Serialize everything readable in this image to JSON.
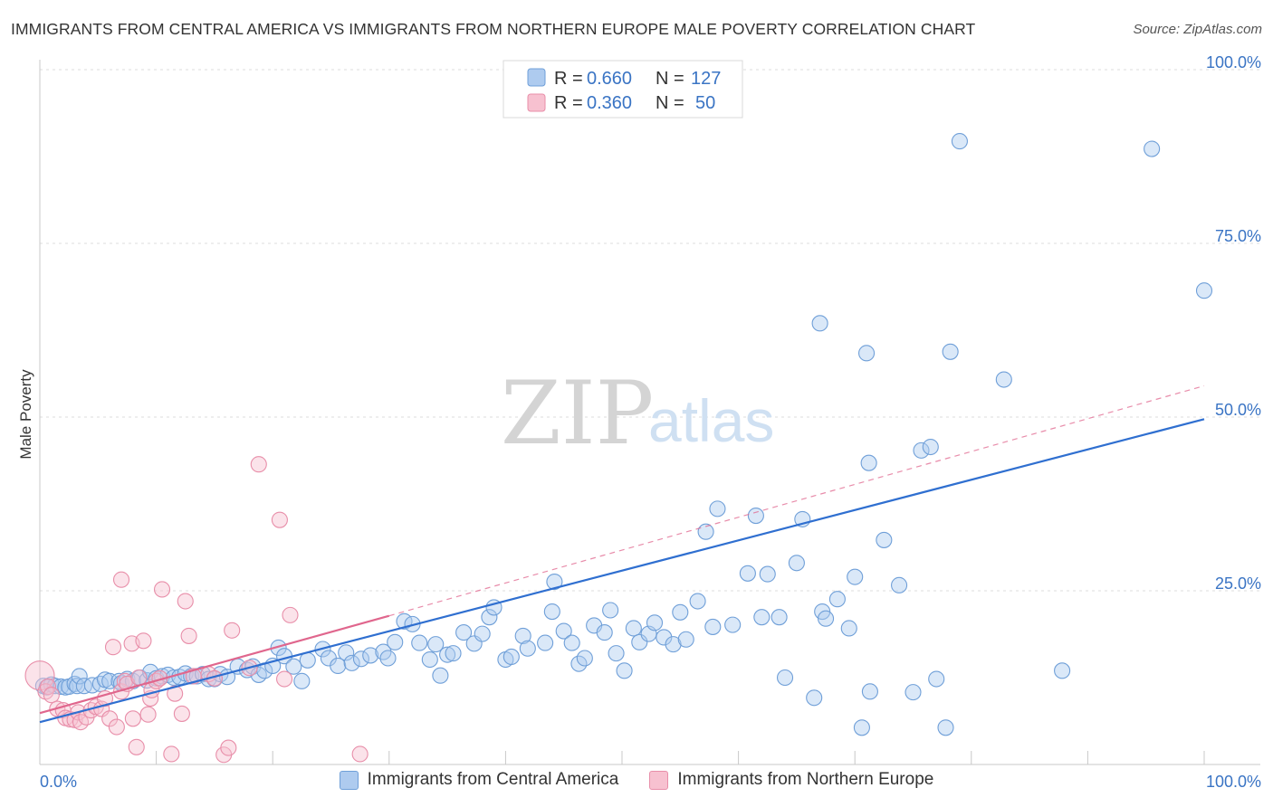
{
  "title": "IMMIGRANTS FROM CENTRAL AMERICA VS IMMIGRANTS FROM NORTHERN EUROPE MALE POVERTY CORRELATION CHART",
  "source": "Source: ZipAtlas.com",
  "watermark": {
    "zip": "ZIP",
    "atlas": "atlas"
  },
  "stats": [
    {
      "r_label": "R =",
      "r_value": "0.660",
      "n_label": "N =",
      "n_value": "127"
    },
    {
      "r_label": "R =",
      "r_value": "0.360",
      "n_label": "N =",
      "n_value": "50"
    }
  ],
  "chart_data": {
    "type": "scatter",
    "title": "IMMIGRANTS FROM CENTRAL AMERICA VS IMMIGRANTS FROM NORTHERN EUROPE MALE POVERTY CORRELATION CHART",
    "xlabel": "",
    "ylabel": "Male Poverty",
    "xlim": [
      0,
      100
    ],
    "ylim": [
      0,
      100
    ],
    "x_tick_labels": [
      "0.0%",
      "100.0%"
    ],
    "y_ticks": [
      {
        "value": 25,
        "label": "25.0%"
      },
      {
        "value": 50,
        "label": "50.0%"
      },
      {
        "value": 75,
        "label": "75.0%"
      },
      {
        "value": 100,
        "label": "100.0%"
      }
    ],
    "grid": true,
    "legend_position": "bottom",
    "series": [
      {
        "name": "Immigrants from Central America",
        "color": "#6f9fd8",
        "fill": "#aecbef",
        "points": [
          [
            0.3,
            11.3
          ],
          [
            0.6,
            11.1
          ],
          [
            1.0,
            11.5
          ],
          [
            1.3,
            11.3
          ],
          [
            1.8,
            11.2
          ],
          [
            2.2,
            11.1
          ],
          [
            2.5,
            11.2
          ],
          [
            3.0,
            11.6
          ],
          [
            3.2,
            11.3
          ],
          [
            3.4,
            12.7
          ],
          [
            3.8,
            11.3
          ],
          [
            4.5,
            11.4
          ],
          [
            5.2,
            11.6
          ],
          [
            5.6,
            12.2
          ],
          [
            6.0,
            12.0
          ],
          [
            6.8,
            12.0
          ],
          [
            7.0,
            11.7
          ],
          [
            7.5,
            12.3
          ],
          [
            8.0,
            12.0
          ],
          [
            8.6,
            12.5
          ],
          [
            9.2,
            12.1
          ],
          [
            9.5,
            13.3
          ],
          [
            10.0,
            12.4
          ],
          [
            10.5,
            12.7
          ],
          [
            11.0,
            12.9
          ],
          [
            11.5,
            12.5
          ],
          [
            12.0,
            12.6
          ],
          [
            12.5,
            13.1
          ],
          [
            13.0,
            12.7
          ],
          [
            13.5,
            12.7
          ],
          [
            14.0,
            13.0
          ],
          [
            14.5,
            12.3
          ],
          [
            15.0,
            12.3
          ],
          [
            15.5,
            13.0
          ],
          [
            16.1,
            12.6
          ],
          [
            17.0,
            14.1
          ],
          [
            17.8,
            13.6
          ],
          [
            18.3,
            14.1
          ],
          [
            18.8,
            12.9
          ],
          [
            19.3,
            13.5
          ],
          [
            20.0,
            14.2
          ],
          [
            20.5,
            16.8
          ],
          [
            21.0,
            15.6
          ],
          [
            21.8,
            14.1
          ],
          [
            22.5,
            12.0
          ],
          [
            23.0,
            15.0
          ],
          [
            24.3,
            16.6
          ],
          [
            24.8,
            15.3
          ],
          [
            25.6,
            14.2
          ],
          [
            26.3,
            16.1
          ],
          [
            26.8,
            14.6
          ],
          [
            27.6,
            15.2
          ],
          [
            28.4,
            15.7
          ],
          [
            29.5,
            16.2
          ],
          [
            29.9,
            15.3
          ],
          [
            30.5,
            17.6
          ],
          [
            31.3,
            20.6
          ],
          [
            32.0,
            20.2
          ],
          [
            32.6,
            17.5
          ],
          [
            33.5,
            15.1
          ],
          [
            34.0,
            17.3
          ],
          [
            34.4,
            12.8
          ],
          [
            35.0,
            15.8
          ],
          [
            35.5,
            16.0
          ],
          [
            36.4,
            19.0
          ],
          [
            37.3,
            17.4
          ],
          [
            38.0,
            18.8
          ],
          [
            38.6,
            21.2
          ],
          [
            39.0,
            22.6
          ],
          [
            40.0,
            15.1
          ],
          [
            40.5,
            15.5
          ],
          [
            41.5,
            18.5
          ],
          [
            41.9,
            16.7
          ],
          [
            43.4,
            17.5
          ],
          [
            44.0,
            22.0
          ],
          [
            44.2,
            26.3
          ],
          [
            45.0,
            19.2
          ],
          [
            45.7,
            17.5
          ],
          [
            46.3,
            14.5
          ],
          [
            46.8,
            15.3
          ],
          [
            47.6,
            20.0
          ],
          [
            48.5,
            19.0
          ],
          [
            49.0,
            22.2
          ],
          [
            49.5,
            16.0
          ],
          [
            50.2,
            13.5
          ],
          [
            51.0,
            19.6
          ],
          [
            51.5,
            17.6
          ],
          [
            52.3,
            18.8
          ],
          [
            52.8,
            20.4
          ],
          [
            53.6,
            18.3
          ],
          [
            54.4,
            17.3
          ],
          [
            55.0,
            21.9
          ],
          [
            55.5,
            18.0
          ],
          [
            56.5,
            23.5
          ],
          [
            57.2,
            33.5
          ],
          [
            57.8,
            19.8
          ],
          [
            58.2,
            36.8
          ],
          [
            59.5,
            20.1
          ],
          [
            60.8,
            27.5
          ],
          [
            61.5,
            35.8
          ],
          [
            62.5,
            27.4
          ],
          [
            62.0,
            21.2
          ],
          [
            63.5,
            21.2
          ],
          [
            64.0,
            12.5
          ],
          [
            65.0,
            29.0
          ],
          [
            65.5,
            35.3
          ],
          [
            66.5,
            9.6
          ],
          [
            67.0,
            63.5
          ],
          [
            67.2,
            22.0
          ],
          [
            67.5,
            21.0
          ],
          [
            68.5,
            23.8
          ],
          [
            69.5,
            19.6
          ],
          [
            70.0,
            27.0
          ],
          [
            70.6,
            5.3
          ],
          [
            71.0,
            59.2
          ],
          [
            71.2,
            43.4
          ],
          [
            71.3,
            10.5
          ],
          [
            72.5,
            32.3
          ],
          [
            73.8,
            25.8
          ],
          [
            75.0,
            10.4
          ],
          [
            75.7,
            45.2
          ],
          [
            76.5,
            45.7
          ],
          [
            77.0,
            12.3
          ],
          [
            77.8,
            5.3
          ],
          [
            78.2,
            59.4
          ],
          [
            82.8,
            55.4
          ],
          [
            79.0,
            89.7
          ],
          [
            87.8,
            13.5
          ],
          [
            95.5,
            88.6
          ],
          [
            100.0,
            68.2
          ]
        ]
      },
      {
        "name": "Immigrants from Northern Europe",
        "color": "#e88ea9",
        "fill": "#f7c1d0",
        "points": [
          [
            0.0,
            12.8
          ],
          [
            0.5,
            10.5
          ],
          [
            0.7,
            11.2
          ],
          [
            1.0,
            10.0
          ],
          [
            1.5,
            8.0
          ],
          [
            2.0,
            7.8
          ],
          [
            2.2,
            6.7
          ],
          [
            2.6,
            6.5
          ],
          [
            3.0,
            6.4
          ],
          [
            3.3,
            7.5
          ],
          [
            3.5,
            6.1
          ],
          [
            4.0,
            6.8
          ],
          [
            4.4,
            7.8
          ],
          [
            4.8,
            8.3
          ],
          [
            5.3,
            8.0
          ],
          [
            5.6,
            9.5
          ],
          [
            6.0,
            6.6
          ],
          [
            6.3,
            16.9
          ],
          [
            6.6,
            5.4
          ],
          [
            7.0,
            10.5
          ],
          [
            7.0,
            26.6
          ],
          [
            7.3,
            12.0
          ],
          [
            7.5,
            11.6
          ],
          [
            7.9,
            17.4
          ],
          [
            8.0,
            6.6
          ],
          [
            8.3,
            2.5
          ],
          [
            8.5,
            12.5
          ],
          [
            8.9,
            17.8
          ],
          [
            9.3,
            7.2
          ],
          [
            9.5,
            9.5
          ],
          [
            9.6,
            10.7
          ],
          [
            10.0,
            12.0
          ],
          [
            10.3,
            12.4
          ],
          [
            10.5,
            25.2
          ],
          [
            11.3,
            1.5
          ],
          [
            11.6,
            10.2
          ],
          [
            12.2,
            7.3
          ],
          [
            12.5,
            23.5
          ],
          [
            12.8,
            18.5
          ],
          [
            13.2,
            12.7
          ],
          [
            14.5,
            13.0
          ],
          [
            15.0,
            12.4
          ],
          [
            15.8,
            1.4
          ],
          [
            16.2,
            2.4
          ],
          [
            16.5,
            19.3
          ],
          [
            18.0,
            13.9
          ],
          [
            18.8,
            43.2
          ],
          [
            20.6,
            35.2
          ],
          [
            21.0,
            12.3
          ],
          [
            21.5,
            21.5
          ],
          [
            27.5,
            1.5
          ]
        ]
      }
    ],
    "trend_lines": [
      {
        "series": "Immigrants from Central America",
        "x": [
          0,
          100
        ],
        "y": [
          6.1,
          49.7
        ],
        "style": "solid"
      },
      {
        "series": "Immigrants from Northern Europe",
        "x": [
          0,
          30
        ],
        "y": [
          7.4,
          21.4
        ],
        "style": "solid"
      },
      {
        "series": "Immigrants from Northern Europe",
        "x": [
          30,
          100
        ],
        "y": [
          21.4,
          54.5
        ],
        "style": "dashed"
      }
    ]
  }
}
